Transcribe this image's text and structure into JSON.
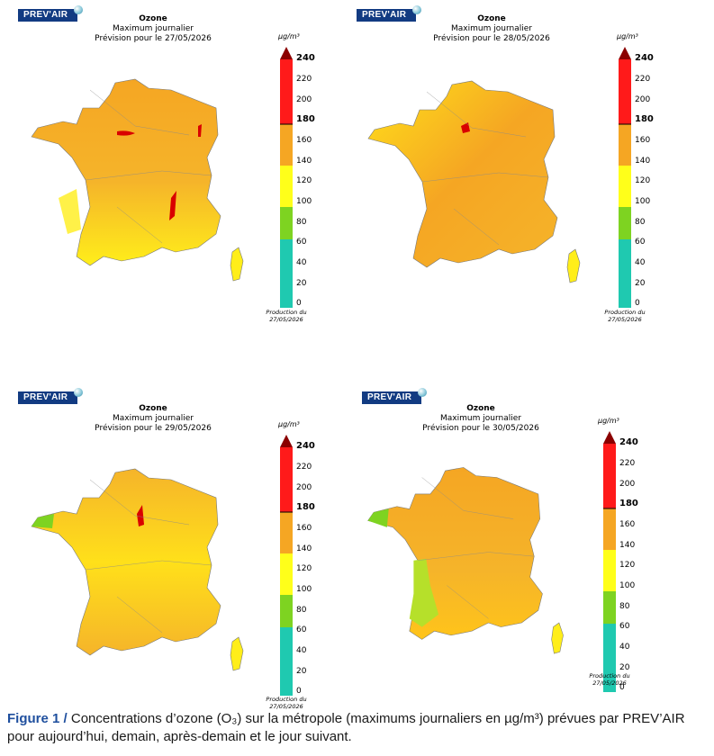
{
  "logo_text": "PREV'AIR",
  "common": {
    "title": "Ozone",
    "subtitle": "Maximum journalier",
    "unit": "µg/m³",
    "production_label": "Production du",
    "production_date": "27/05/2026",
    "ticks": [
      "240",
      "220",
      "200",
      "180",
      "160",
      "140",
      "120",
      "100",
      "80",
      "60",
      "40",
      "20",
      "0"
    ],
    "colorbar_colors": {
      "teal": "#1fc9b0",
      "green": "#7ed321",
      "yellow": "#ffff1a",
      "orange": "#f5a623",
      "red": "#ff1a1a",
      "darkred": "#8b0000"
    }
  },
  "panels": [
    {
      "forecast": "Prévision pour le 27/05/2026",
      "dominant": "orange"
    },
    {
      "forecast": "Prévision pour le 28/05/2026",
      "dominant": "orange"
    },
    {
      "forecast": "Prévision pour le 29/05/2026",
      "dominant": "yellow-orange"
    },
    {
      "forecast": "Prévision pour le 30/05/2026",
      "dominant": "orange-green"
    }
  ],
  "caption": {
    "label": "Figure 1 /",
    "text": " Concentrations d’ozone (O₃) sur la métropole (maximums journaliers en µg/m³) prévues par PREV’AIR pour aujourd’hui, demain, après-demain et le jour suivant."
  }
}
